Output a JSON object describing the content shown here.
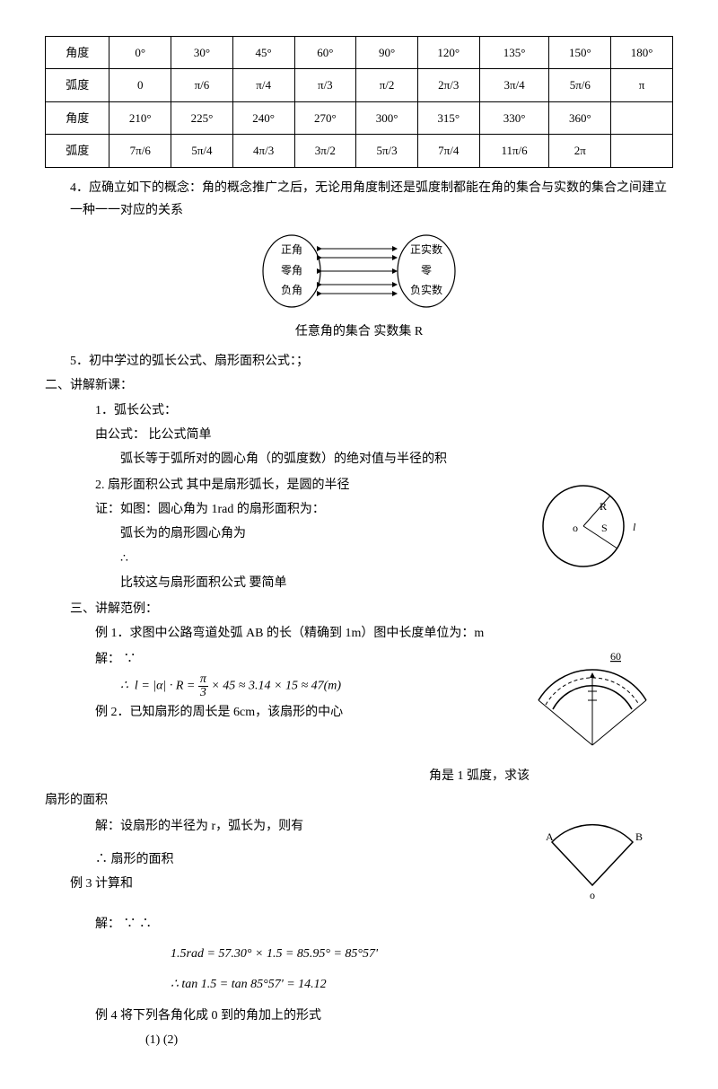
{
  "table": {
    "rows": [
      [
        "角度",
        "0°",
        "30°",
        "45°",
        "60°",
        "90°",
        "120°",
        "135°",
        "150°",
        "180°"
      ],
      [
        "弧度",
        "0",
        "π/6",
        "π/4",
        "π/3",
        "π/2",
        "2π/3",
        "3π/4",
        "5π/6",
        "π"
      ],
      [
        "角度",
        "210°",
        "225°",
        "240°",
        "270°",
        "300°",
        "315°",
        "330°",
        "360°",
        ""
      ],
      [
        "弧度",
        "7π/6",
        "5π/4",
        "4π/3",
        "3π/2",
        "5π/3",
        "7π/4",
        "11π/6",
        "2π",
        ""
      ]
    ],
    "border_color": "#000000",
    "font_size": 13
  },
  "p4": "4．应确立如下的概念：角的概念推广之后，无论用角度制还是弧度制都能在角的集合与实数的集合之间建立一种一一对应的关系",
  "diagram1": {
    "left": {
      "label1": "正角",
      "label2": "零角",
      "label3": "负角"
    },
    "right": {
      "label1": "正实数",
      "label2": "零",
      "label3": "负实数"
    }
  },
  "caption1": "任意角的集合       实数集 R",
  "p5": "5．初中学过的弧长公式、扇形面积公式：；",
  "section2_title": "二、讲解新课：",
  "s2_1": "1．弧长公式：",
  "s2_1a": "由公式：          比公式简单",
  "s2_1b": "弧长等于弧所对的圆心角（的弧度数）的绝对值与半径的积",
  "s2_2": "2. 扇形面积公式      其中是扇形弧长，是圆的半径",
  "s2_2a": "证：如图：圆心角为 1rad 的扇形面积为：",
  "s2_2b": "弧长为的扇形圆心角为",
  "s2_2c": "∴",
  "s2_2d": "比较这与扇形面积公式   要简单",
  "circle_fig": {
    "R": "R",
    "S": "S",
    "o": "o",
    "l": "l"
  },
  "section3_title": "三、讲解范例：",
  "ex1": "例 1．求图中公路弯道处弧 AB 的长（精确到 1m）图中长度单位为：m",
  "ex1_sol": "解：  ∵",
  "ex1_formula": "∴  l = |α| · R = (π/3) × 45 ≈ 3.14 × 15 ≈ 47(m)",
  "road_fig": {
    "label": "60"
  },
  "ex2_a": "例 2．已知扇形的周长是 6cm，该扇形的中心",
  "ex2_b": "角是 1 弧度，求该",
  "ex2_tail": "扇形的面积",
  "ex2_sol": "解：设扇形的半径为 r，弧长为，则有",
  "ex2_res": "∴ 扇形的面积",
  "sector_fig": {
    "A": "A",
    "B": "B",
    "o": "o"
  },
  "ex3": "例 3   计算和",
  "ex3_sol": "解：  ∵        ∴",
  "ex3_f1": "1.5rad = 57.30° × 1.5 = 85.95° = 85°57'",
  "ex3_f2": "∴   tan 1.5 = tan 85°57' = 14.12",
  "ex4": "例 4   将下列各角化成 0 到的角加上的形式",
  "ex4_items": "(1)          (2)",
  "colors": {
    "text": "#000000",
    "bg": "#ffffff"
  }
}
